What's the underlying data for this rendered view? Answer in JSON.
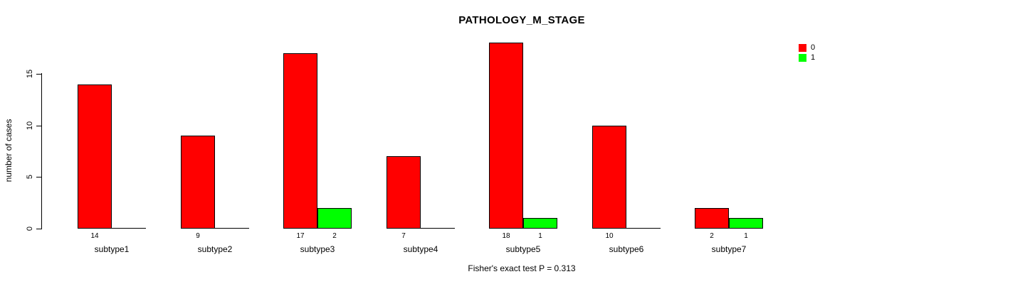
{
  "chart_data": {
    "type": "bar",
    "title": "PATHOLOGY_M_STAGE",
    "ylabel": "number of cases",
    "xlabel": "",
    "categories": [
      "subtype1",
      "subtype2",
      "subtype3",
      "subtype4",
      "subtype5",
      "subtype6",
      "subtype7"
    ],
    "series": [
      {
        "name": "0",
        "color": "#ff0000",
        "values": [
          14,
          9,
          17,
          7,
          18,
          10,
          2
        ]
      },
      {
        "name": "1",
        "color": "#00ff00",
        "values": [
          0,
          0,
          2,
          0,
          1,
          0,
          1
        ]
      }
    ],
    "yticks": [
      0,
      5,
      10,
      15
    ],
    "ylim": [
      0,
      18
    ],
    "grid": false,
    "bar_borders": "#000000",
    "legend": {
      "position": "top-right",
      "entries": [
        {
          "label": "0",
          "color": "#ff0000"
        },
        {
          "label": "1",
          "color": "#00ff00"
        }
      ]
    },
    "caption": "Fisher's exact test P = 0.313"
  },
  "colors": {
    "background": "#ffffff",
    "axis": "#000000",
    "text": "#000000"
  }
}
